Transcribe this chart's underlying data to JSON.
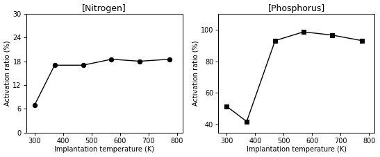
{
  "nitrogen": {
    "title": "[Nitrogen]",
    "x": [
      300,
      370,
      470,
      570,
      670,
      775
    ],
    "y": [
      7.0,
      17.0,
      17.0,
      18.5,
      18.0,
      18.5
    ],
    "marker": "o",
    "xlim": [
      270,
      820
    ],
    "ylim": [
      0,
      30
    ],
    "yticks": [
      0,
      6,
      12,
      18,
      24,
      30
    ],
    "xticks": [
      300,
      400,
      500,
      600,
      700,
      800
    ],
    "xlabel": "Implantation temperature (K)",
    "ylabel": "Activation ratio (%)"
  },
  "phosphorus": {
    "title": "[Phosphorus]",
    "x": [
      300,
      370,
      470,
      570,
      670,
      775
    ],
    "y": [
      51.5,
      42.0,
      93.0,
      98.5,
      96.5,
      93.0
    ],
    "marker": "s",
    "xlim": [
      270,
      820
    ],
    "ylim": [
      35,
      110
    ],
    "yticks": [
      40,
      60,
      80,
      100
    ],
    "xticks": [
      300,
      400,
      500,
      600,
      700,
      800
    ],
    "xlabel": "Implantation temperature (K)",
    "ylabel": "Activation ratio (%)"
  },
  "line_color": "#000000",
  "marker_color": "#000000",
  "marker_size": 4.5,
  "line_width": 1.0,
  "title_fontsize": 9,
  "label_fontsize": 7,
  "tick_fontsize": 7,
  "background_color": "#ffffff"
}
